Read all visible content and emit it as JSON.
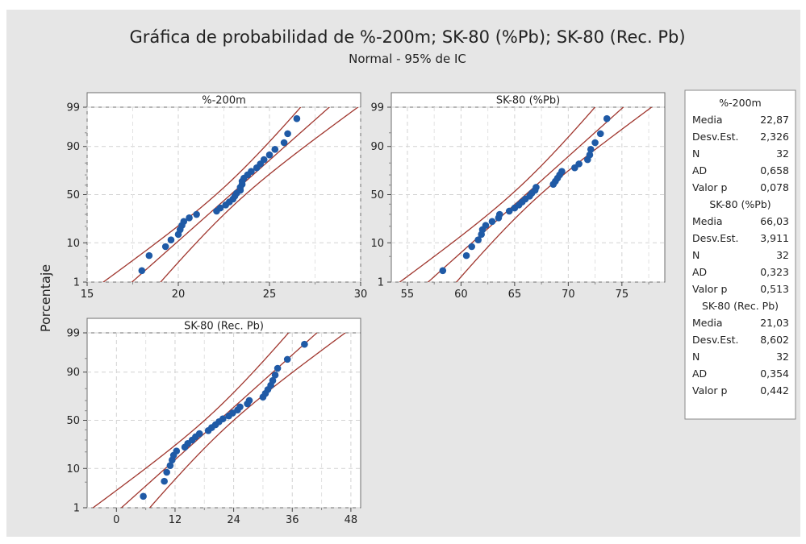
{
  "title": "Gráfica de probabilidad de %-200m; SK-80 (%Pb); SK-80 (Rec. Pb)",
  "subtitle": "Normal - 95% de IC",
  "ylabel": "Porcentaje",
  "colors": {
    "background": "#e6e6e6",
    "panel": "#ffffff",
    "points": "#1f5aa6",
    "ci_lines": "#a0362e",
    "grid": "#d2d2d2"
  },
  "legend": {
    "groups": [
      {
        "name": "%-200m",
        "rows": [
          {
            "label": "Media",
            "value": "22,87"
          },
          {
            "label": "Desv.Est.",
            "value": "2,326"
          },
          {
            "label": "N",
            "value": "32"
          },
          {
            "label": "AD",
            "value": "0,658"
          },
          {
            "label": "Valor p",
            "value": "0,078"
          }
        ]
      },
      {
        "name": "SK-80 (%Pb)",
        "rows": [
          {
            "label": "Media",
            "value": "66,03"
          },
          {
            "label": "Desv.Est.",
            "value": "3,911"
          },
          {
            "label": "N",
            "value": "32"
          },
          {
            "label": "AD",
            "value": "0,323"
          },
          {
            "label": "Valor p",
            "value": "0,513"
          }
        ]
      },
      {
        "name": "SK-80 (Rec. Pb)",
        "rows": [
          {
            "label": "Media",
            "value": "21,03"
          },
          {
            "label": "Desv.Est.",
            "value": "8,602"
          },
          {
            "label": "N",
            "value": "32"
          },
          {
            "label": "AD",
            "value": "0,354"
          },
          {
            "label": "Valor p",
            "value": "0,442"
          }
        ]
      }
    ]
  },
  "chart_data": [
    {
      "type": "scatter",
      "title": "%-200m",
      "xlim": [
        15,
        30
      ],
      "xticks": [
        "15",
        "20",
        "25",
        "30"
      ],
      "ylim_percent": [
        1,
        99
      ],
      "yticks": [
        "1",
        "10",
        "50",
        "90",
        "99"
      ],
      "mean": 22.87,
      "stdev": 2.326,
      "n": 32,
      "x": [
        18.0,
        18.4,
        19.3,
        19.6,
        20.0,
        20.1,
        20.2,
        20.3,
        20.6,
        21.0,
        22.1,
        22.3,
        22.6,
        22.8,
        23.0,
        23.1,
        23.2,
        23.4,
        23.4,
        23.5,
        23.5,
        23.6,
        23.8,
        24.0,
        24.3,
        24.5,
        24.7,
        25.0,
        25.3,
        25.8,
        26.0,
        26.5
      ]
    },
    {
      "type": "scatter",
      "title": "SK-80 (%Pb)",
      "xlim": [
        53.5,
        79
      ],
      "xticks": [
        "55",
        "60",
        "65",
        "70",
        "75"
      ],
      "ylim_percent": [
        1,
        99
      ],
      "yticks": [
        "1",
        "10",
        "50",
        "90",
        "99"
      ],
      "mean": 66.03,
      "stdev": 3.911,
      "n": 32,
      "x": [
        58.3,
        60.5,
        61.0,
        61.6,
        61.9,
        62.0,
        62.3,
        62.9,
        63.5,
        63.6,
        64.5,
        65.0,
        65.4,
        65.7,
        66.0,
        66.4,
        66.6,
        66.9,
        67.0,
        68.6,
        68.8,
        69.0,
        69.2,
        69.4,
        70.6,
        71.0,
        71.8,
        72.0,
        72.1,
        72.5,
        73.0,
        73.6
      ]
    },
    {
      "type": "scatter",
      "title": "SK-80 (Rec. Pb)",
      "xlim": [
        -6,
        50
      ],
      "xticks": [
        "0",
        "12",
        "24",
        "36",
        "48"
      ],
      "ylim_percent": [
        1,
        99
      ],
      "yticks": [
        "1",
        "10",
        "50",
        "90",
        "99"
      ],
      "mean": 21.03,
      "stdev": 8.602,
      "n": 32,
      "x": [
        5.5,
        9.8,
        10.3,
        11.0,
        11.4,
        11.7,
        12.3,
        14.0,
        14.6,
        15.5,
        16.2,
        17.0,
        18.8,
        19.5,
        20.3,
        21.0,
        21.8,
        23.0,
        23.8,
        24.8,
        25.3,
        26.8,
        27.2,
        30.0,
        30.5,
        31.0,
        31.6,
        32.0,
        32.5,
        33.0,
        35.0,
        38.5
      ]
    }
  ]
}
